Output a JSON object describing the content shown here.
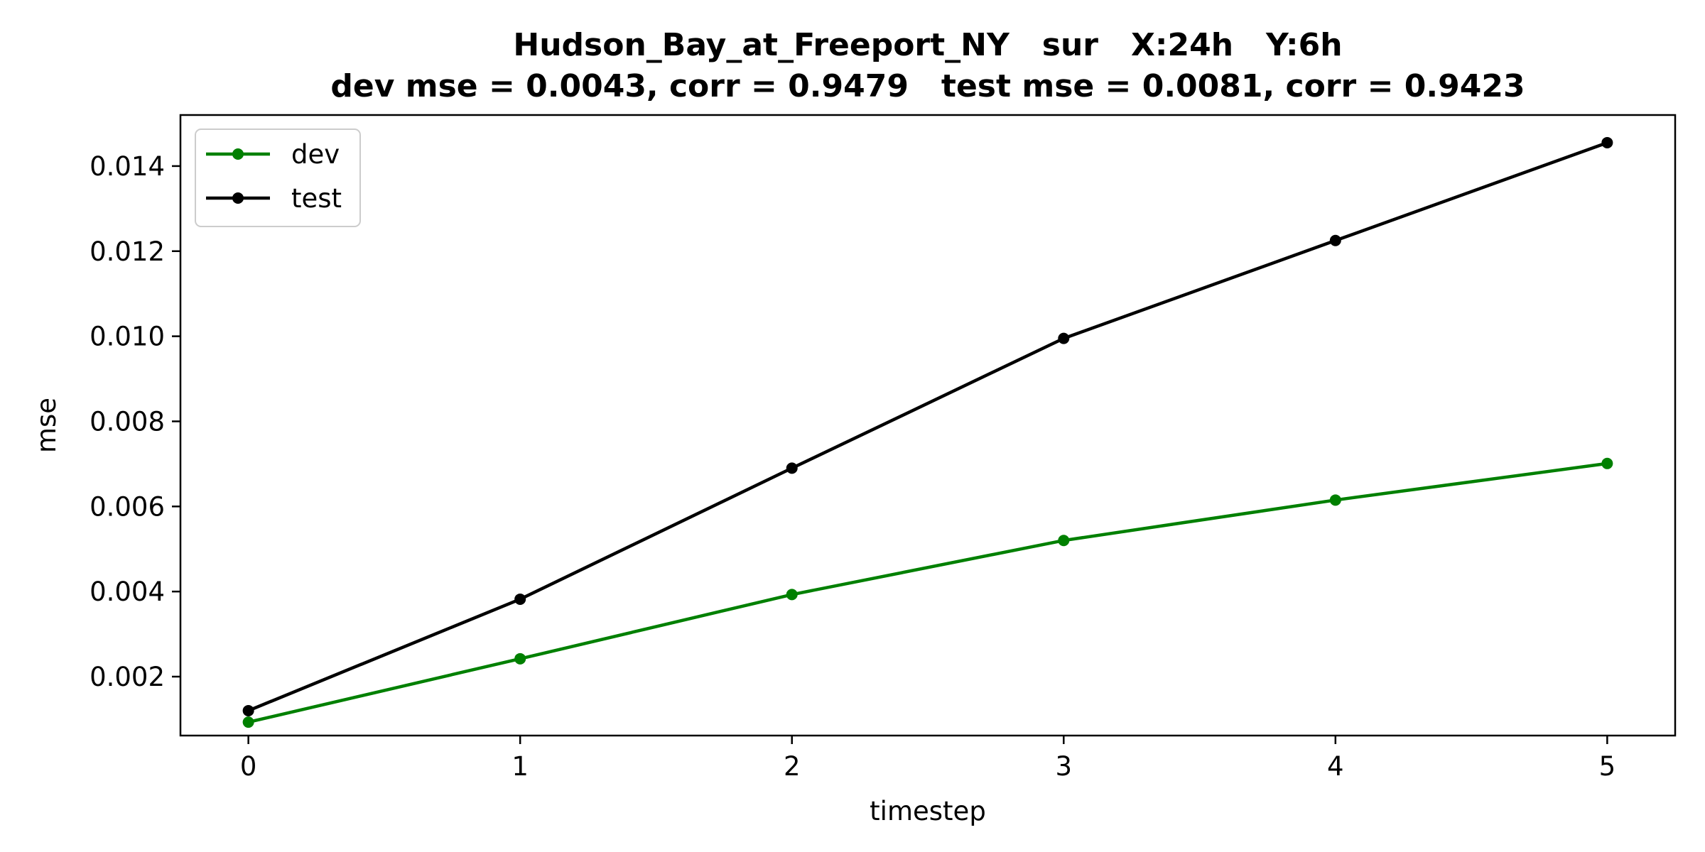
{
  "chart_data": {
    "type": "line",
    "title": "Hudson_Bay_at_Freeport_NY   sur   X:24h   Y:6h",
    "subtitle": "dev mse = 0.0043, corr = 0.9479   test mse = 0.0081, corr = 0.9423",
    "xlabel": "timestep",
    "ylabel": "mse",
    "x": [
      0,
      1,
      2,
      3,
      4,
      5
    ],
    "xticks": [
      "0",
      "1",
      "2",
      "3",
      "4",
      "5"
    ],
    "yticks": [
      "0.002",
      "0.004",
      "0.006",
      "0.008",
      "0.010",
      "0.012",
      "0.014"
    ],
    "xlim": [
      -0.25,
      5.25
    ],
    "ylim": [
      0.000615,
      0.0152
    ],
    "grid": false,
    "legend_position": "top-left",
    "series": [
      {
        "name": "dev",
        "color": "#008000",
        "values": [
          0.00093,
          0.00242,
          0.00393,
          0.0052,
          0.00615,
          0.00701
        ]
      },
      {
        "name": "test",
        "color": "#000000",
        "values": [
          0.0012,
          0.00382,
          0.0069,
          0.00995,
          0.01225,
          0.01455
        ]
      }
    ]
  }
}
